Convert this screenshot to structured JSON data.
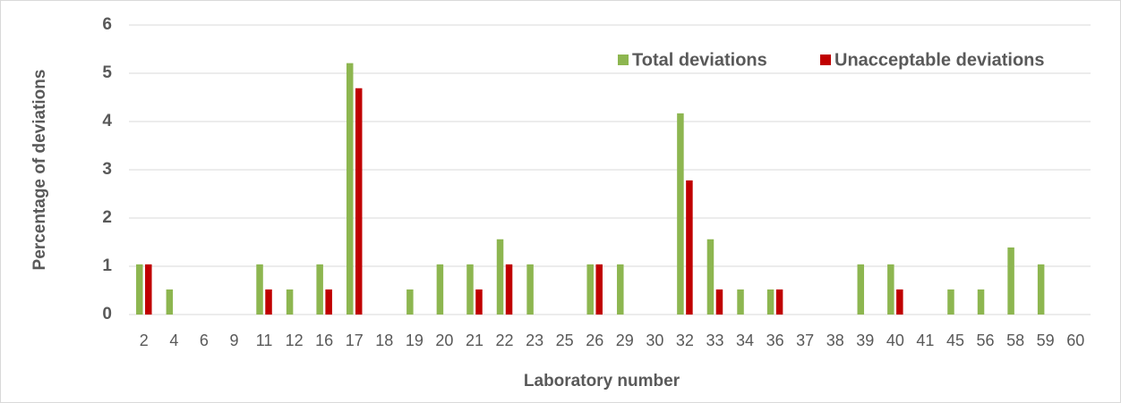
{
  "chart_data": {
    "type": "bar",
    "y_label": "Percentage of deviations",
    "x_label": "Laboratory number",
    "categories": [
      "2",
      "4",
      "6",
      "9",
      "11",
      "12",
      "16",
      "17",
      "18",
      "19",
      "20",
      "21",
      "22",
      "23",
      "25",
      "26",
      "29",
      "30",
      "32",
      "33",
      "34",
      "36",
      "37",
      "38",
      "39",
      "40",
      "41",
      "45",
      "56",
      "58",
      "59",
      "60"
    ],
    "series": [
      {
        "name": "Total deviations",
        "color": "#8db650",
        "values": [
          1.04,
          0.52,
          0,
          0,
          1.04,
          0.52,
          1.04,
          5.21,
          0,
          0.52,
          1.04,
          1.04,
          1.56,
          1.04,
          0,
          1.04,
          1.04,
          0,
          4.17,
          1.56,
          0.52,
          0.52,
          0,
          0,
          1.04,
          1.04,
          0,
          0.52,
          0.52,
          1.39,
          1.04,
          0
        ]
      },
      {
        "name": "Unacceptable deviations",
        "color": "#c00000",
        "values": [
          1.04,
          0,
          0,
          0,
          0.52,
          0,
          0.52,
          4.69,
          0,
          0,
          0,
          0.52,
          1.04,
          0,
          0,
          1.04,
          0,
          0,
          2.78,
          0.52,
          0,
          0.52,
          0,
          0,
          0,
          0.52,
          0,
          0,
          0,
          0,
          0,
          0
        ]
      }
    ],
    "ylim": [
      0,
      6
    ],
    "yticks": [
      0,
      1,
      2,
      3,
      4,
      5,
      6
    ],
    "grid": true,
    "legend": "top-right"
  }
}
